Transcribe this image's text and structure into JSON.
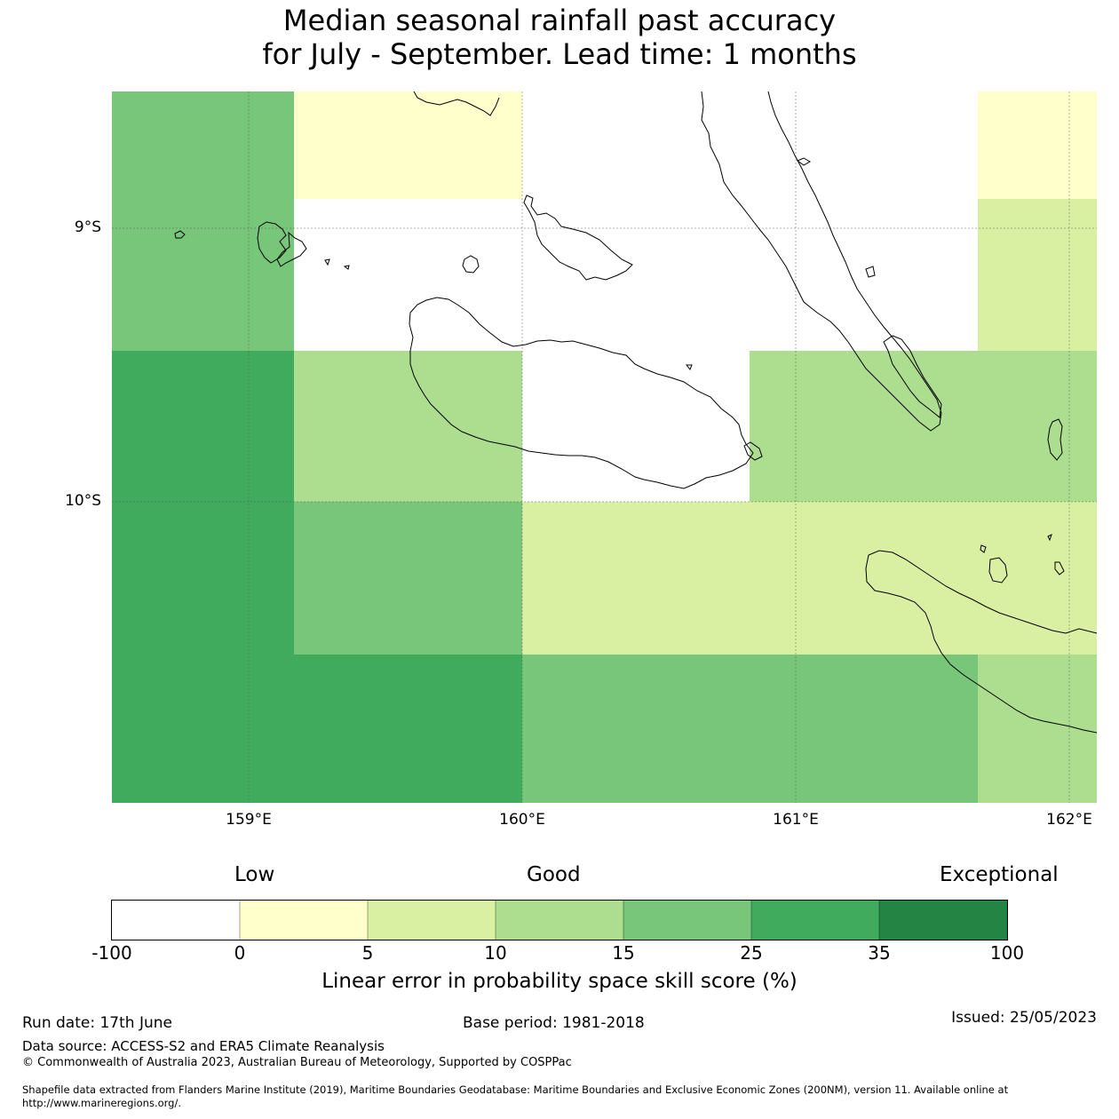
{
  "title": {
    "line1": "Median seasonal rainfall past accuracy",
    "line2": "for July - September. Lead time: 1 months"
  },
  "map": {
    "lat_labels": [
      "9°S",
      "10°S"
    ],
    "lon_labels": [
      "159°E",
      "160°E",
      "161°E",
      "162°E"
    ],
    "skill_colors": {
      "below_0": "#ffffff",
      "0_5": "#ffffcc",
      "5_10": "#d9f0a3",
      "10_15": "#addd8e",
      "15_25": "#78c679",
      "25_35": "#41ab5d",
      "35_100": "#238443"
    },
    "coastline_color": "#000000"
  },
  "colorbar": {
    "category_labels": [
      "Low",
      "Good",
      "Exceptional"
    ],
    "ticks": [
      "-100",
      "0",
      "5",
      "10",
      "15",
      "25",
      "35",
      "100"
    ],
    "colors": [
      "#ffffff",
      "#ffffcc",
      "#d9f0a3",
      "#addd8e",
      "#78c679",
      "#41ab5d",
      "#238443"
    ],
    "label": "Linear error in probability space skill score (%)"
  },
  "footer": {
    "run_date": "Run date: 17th June",
    "base_period": "Base period: 1981-2018",
    "issued": "Issued: 25/05/2023",
    "data_source": "Data source: ACCESS-S2 and ERA5 Climate Reanalysis",
    "copyright": "© Commonwealth of Australia 2023, Australian Bureau of Meteorology, Supported by COSPPac",
    "shapefile_line1": "Shapefile data extracted from Flanders Marine Institute (2019), Maritime Boundaries Geodatabase: Maritime Boundaries and Exclusive Economic Zones (200NM), version 11. Available online at",
    "shapefile_line2": "http://www.marineregions.org/."
  }
}
